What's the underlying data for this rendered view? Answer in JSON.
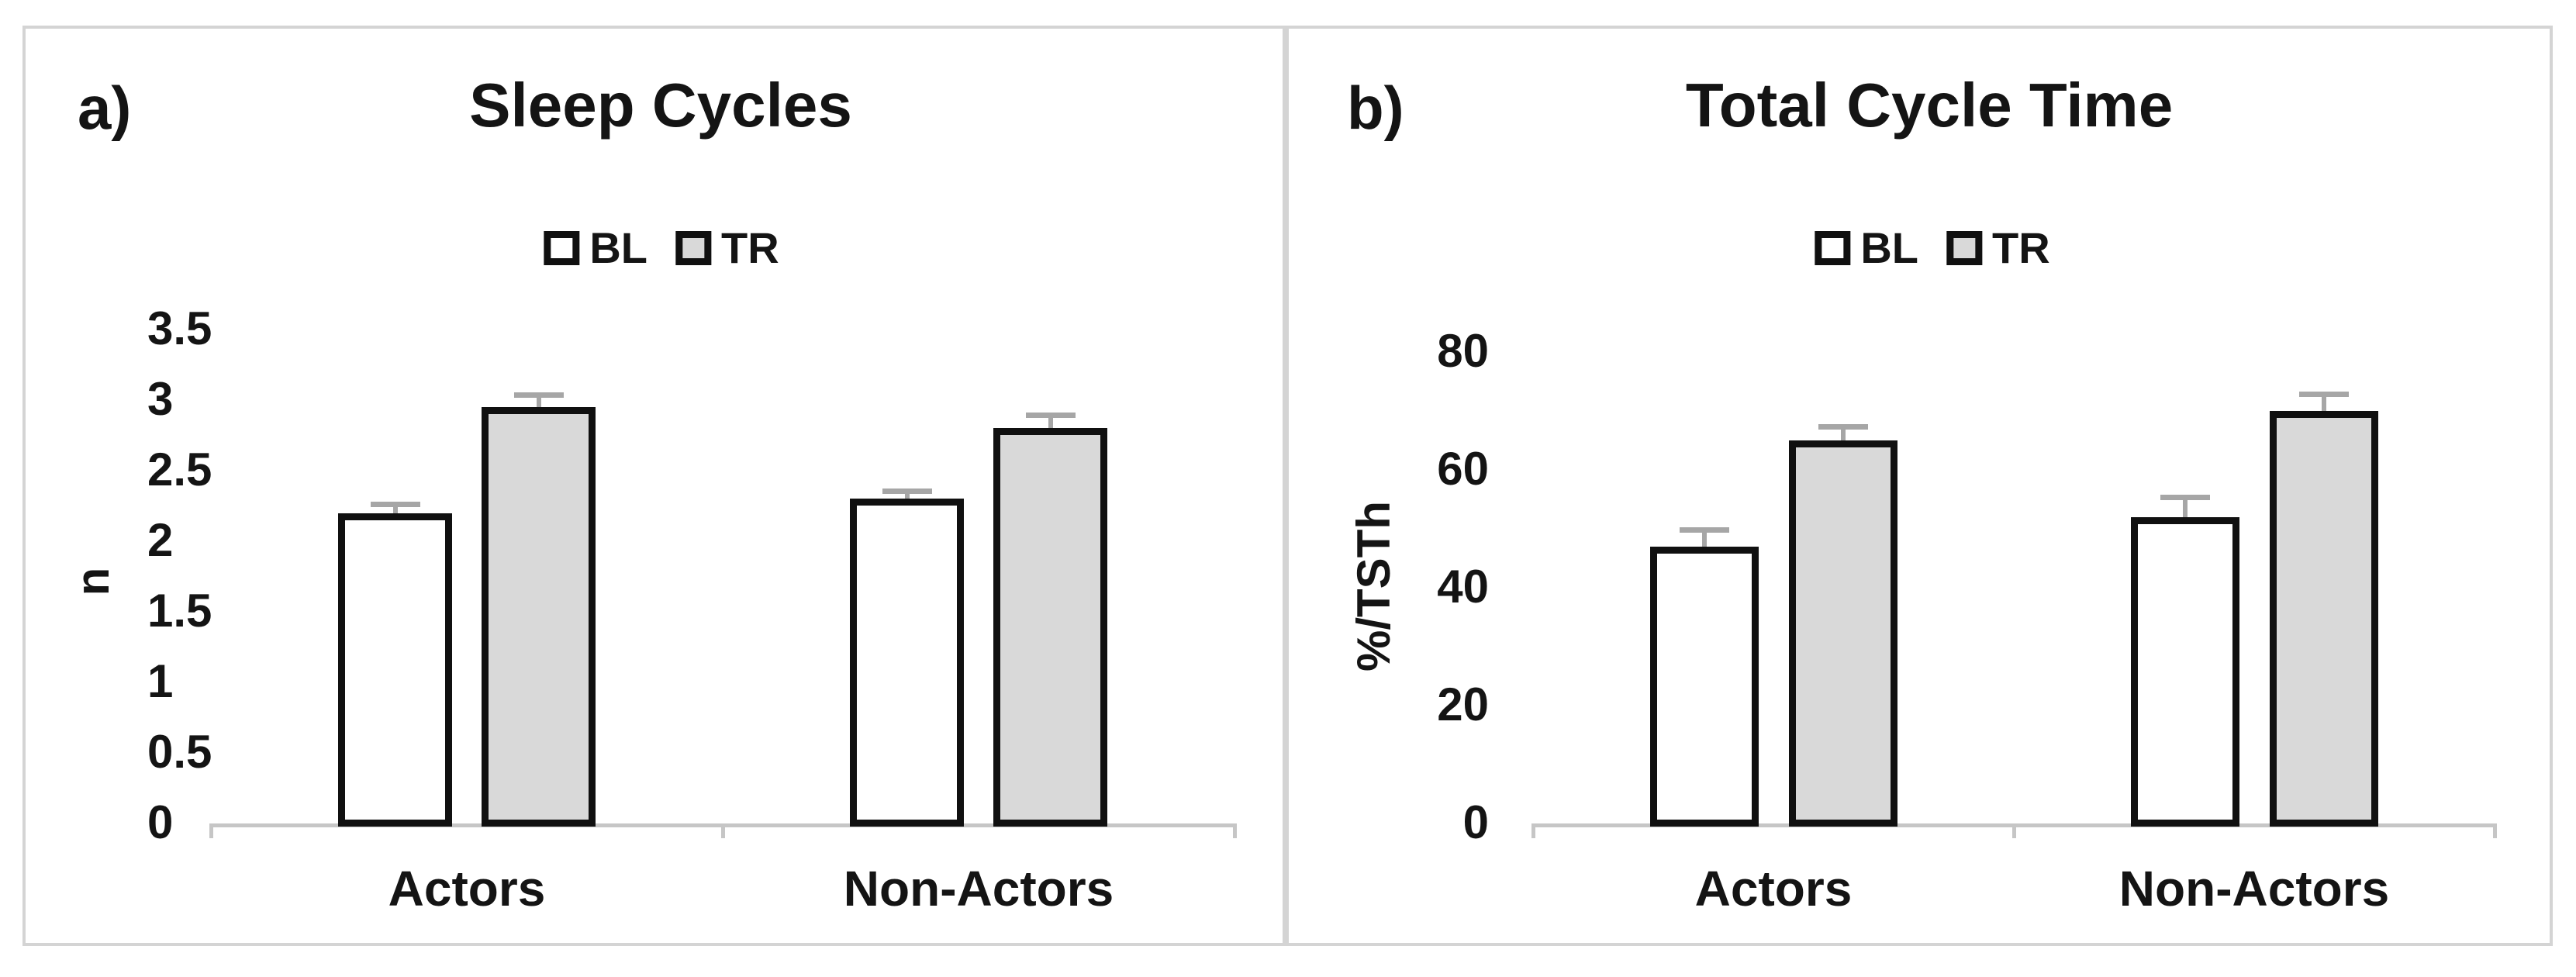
{
  "figure": {
    "background": "#ffffff",
    "panel_border_color": "#d4d4d4",
    "axis_color": "#c6c6c6",
    "bar_border_color": "#101010",
    "error_bar_color": "#a6a6a6",
    "text_color": "#141414",
    "bl_fill": "#ffffff",
    "tr_fill": "#d9d9d9"
  },
  "chart_data": [
    {
      "type": "bar",
      "panel_label": "a)",
      "title": "Sleep Cycles",
      "xlabel": "",
      "ylabel": "n",
      "categories": [
        "Actors",
        "Non-Actors"
      ],
      "legend": [
        "BL",
        "TR"
      ],
      "legend_position": "top-center",
      "grid": false,
      "ylim": [
        0,
        3.5
      ],
      "ytick_step": 0.5,
      "yticks": [
        "0",
        "0.5",
        "1",
        "1.5",
        "2",
        "2.5",
        "3",
        "3.5"
      ],
      "series": [
        {
          "name": "BL",
          "values": [
            2.2,
            2.3
          ],
          "errors": [
            0.05,
            0.04
          ]
        },
        {
          "name": "TR",
          "values": [
            2.95,
            2.8
          ],
          "errors": [
            0.07,
            0.08
          ]
        }
      ]
    },
    {
      "type": "bar",
      "panel_label": "b)",
      "title": "Total Cycle Time",
      "xlabel": "",
      "ylabel": "%/TSTh",
      "categories": [
        "Actors",
        "Non-Actors"
      ],
      "legend": [
        "BL",
        "TR"
      ],
      "legend_position": "top-center",
      "grid": false,
      "ylim": [
        0,
        80
      ],
      "ytick_step": 20,
      "yticks": [
        "0",
        "20",
        "40",
        "60",
        "80"
      ],
      "series": [
        {
          "name": "BL",
          "values": [
            47,
            52
          ],
          "errors": [
            2.5,
            3
          ]
        },
        {
          "name": "TR",
          "values": [
            65,
            70
          ],
          "errors": [
            2,
            2.5
          ]
        }
      ]
    }
  ]
}
